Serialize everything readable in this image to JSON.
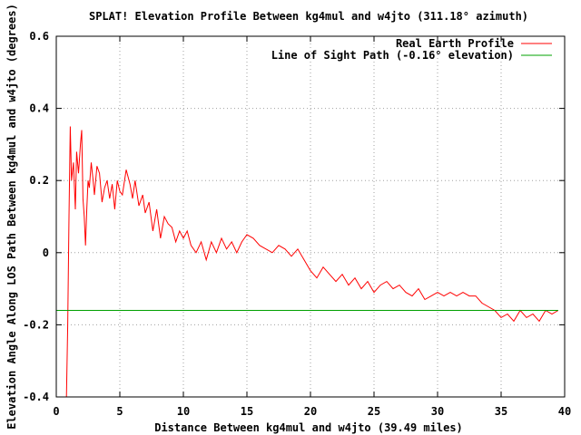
{
  "chart_data": {
    "type": "line",
    "title": "SPLAT! Elevation Profile Between kg4mul and w4jto (311.18° azimuth)",
    "xlabel": "Distance Between kg4mul and w4jto (39.49 miles)",
    "ylabel": "Elevation Angle Along LOS Path Between kg4mul and w4jto (degrees)",
    "xlim": [
      0,
      40
    ],
    "ylim": [
      -0.4,
      0.6
    ],
    "x_ticks": [
      "0",
      "5",
      "10",
      "15",
      "20",
      "25",
      "30",
      "35",
      "40"
    ],
    "y_ticks": [
      "-0.4",
      "-0.2",
      "0",
      "0.2",
      "0.4",
      "0.6"
    ],
    "grid": true,
    "legend_position": "top-right",
    "series": [
      {
        "name": "Real Earth Profile",
        "color": "#ff0000",
        "x": [
          0.8,
          0.9,
          1.0,
          1.1,
          1.2,
          1.35,
          1.5,
          1.6,
          1.75,
          1.9,
          2.0,
          2.1,
          2.2,
          2.3,
          2.4,
          2.5,
          2.6,
          2.75,
          2.9,
          3.0,
          3.2,
          3.4,
          3.6,
          3.8,
          4.0,
          4.2,
          4.4,
          4.6,
          4.8,
          5.0,
          5.2,
          5.5,
          5.8,
          6.0,
          6.2,
          6.5,
          6.8,
          7.0,
          7.3,
          7.6,
          7.9,
          8.2,
          8.5,
          8.8,
          9.1,
          9.4,
          9.7,
          10.0,
          10.3,
          10.6,
          11.0,
          11.4,
          11.8,
          12.2,
          12.6,
          13.0,
          13.4,
          13.8,
          14.2,
          14.6,
          15.0,
          15.5,
          16.0,
          16.5,
          17.0,
          17.5,
          18.0,
          18.5,
          19.0,
          19.5,
          20.0,
          20.5,
          21.0,
          21.5,
          22.0,
          22.5,
          23.0,
          23.5,
          24.0,
          24.5,
          25.0,
          25.5,
          26.0,
          26.5,
          27.0,
          27.5,
          28.0,
          28.5,
          29.0,
          29.5,
          30.0,
          30.5,
          31.0,
          31.5,
          32.0,
          32.5,
          33.0,
          33.5,
          34.0,
          34.5,
          35.0,
          35.5,
          36.0,
          36.5,
          37.0,
          37.5,
          38.0,
          38.5,
          39.0,
          39.49
        ],
        "y": [
          -0.4,
          -0.2,
          0.1,
          0.35,
          0.2,
          0.25,
          0.12,
          0.28,
          0.22,
          0.3,
          0.34,
          0.15,
          0.1,
          0.02,
          0.12,
          0.2,
          0.18,
          0.25,
          0.2,
          0.16,
          0.24,
          0.22,
          0.14,
          0.18,
          0.2,
          0.15,
          0.19,
          0.12,
          0.2,
          0.17,
          0.16,
          0.23,
          0.19,
          0.15,
          0.2,
          0.13,
          0.16,
          0.11,
          0.14,
          0.06,
          0.12,
          0.04,
          0.1,
          0.08,
          0.07,
          0.03,
          0.06,
          0.04,
          0.06,
          0.02,
          0.0,
          0.03,
          -0.02,
          0.03,
          0.0,
          0.04,
          0.01,
          0.03,
          0.0,
          0.03,
          0.05,
          0.04,
          0.02,
          0.01,
          0.0,
          0.02,
          0.01,
          -0.01,
          0.01,
          -0.02,
          -0.05,
          -0.07,
          -0.04,
          -0.06,
          -0.08,
          -0.06,
          -0.09,
          -0.07,
          -0.1,
          -0.08,
          -0.11,
          -0.09,
          -0.08,
          -0.1,
          -0.09,
          -0.11,
          -0.12,
          -0.1,
          -0.13,
          -0.12,
          -0.11,
          -0.12,
          -0.11,
          -0.12,
          -0.11,
          -0.12,
          -0.12,
          -0.14,
          -0.15,
          -0.16,
          -0.18,
          -0.17,
          -0.19,
          -0.16,
          -0.18,
          -0.17,
          -0.19,
          -0.16,
          -0.17,
          -0.16
        ]
      },
      {
        "name": "Line of Sight Path (-0.16° elevation)",
        "color": "#00a000",
        "x": [
          0,
          39.49
        ],
        "y": [
          -0.16,
          -0.16
        ]
      }
    ]
  }
}
